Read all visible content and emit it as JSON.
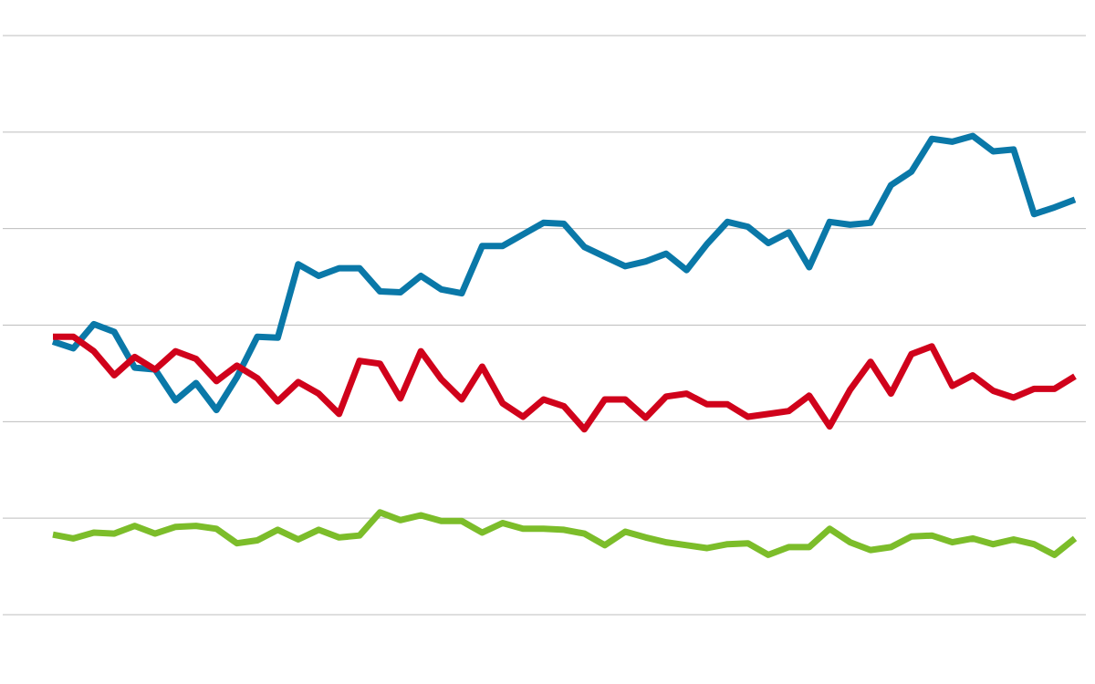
{
  "chart_data": {
    "type": "line",
    "title": "",
    "xlabel": "",
    "ylabel": "",
    "grid": true,
    "legend": "none",
    "xlim": [
      0,
      100
    ],
    "ylim": [
      0,
      6
    ],
    "gridlines": [
      0,
      1,
      2,
      3,
      4,
      5,
      6
    ],
    "x": [
      0,
      2,
      4,
      6,
      8,
      10,
      12,
      14,
      16,
      18,
      20,
      22,
      24,
      26,
      28,
      30,
      32,
      34,
      36,
      38,
      40,
      42,
      44,
      46,
      48,
      50,
      52,
      54,
      56,
      58,
      60,
      62,
      64,
      66,
      68,
      70,
      72,
      74,
      76,
      78,
      80,
      82,
      84,
      86,
      88,
      90,
      92,
      94,
      96,
      98,
      100
    ],
    "series": [
      {
        "color": "#0a78a8",
        "values": [
          2.83,
          2.76,
          3.01,
          2.93,
          2.56,
          2.54,
          2.22,
          2.4,
          2.12,
          2.46,
          2.88,
          2.87,
          3.63,
          3.51,
          3.59,
          3.59,
          3.35,
          3.34,
          3.51,
          3.37,
          3.33,
          3.82,
          3.82,
          3.94,
          4.06,
          4.05,
          3.81,
          3.71,
          3.61,
          3.66,
          3.74,
          3.57,
          3.84,
          4.07,
          4.02,
          3.85,
          3.96,
          3.6,
          4.07,
          4.04,
          4.06,
          4.45,
          4.59,
          4.93,
          4.9,
          4.96,
          4.8,
          4.82,
          4.15,
          4.22,
          4.3
        ]
      },
      {
        "color": "#d0021b",
        "values": [
          2.88,
          2.88,
          2.73,
          2.48,
          2.67,
          2.54,
          2.73,
          2.65,
          2.42,
          2.58,
          2.45,
          2.21,
          2.41,
          2.29,
          2.08,
          2.63,
          2.6,
          2.24,
          2.73,
          2.44,
          2.23,
          2.57,
          2.19,
          2.05,
          2.23,
          2.16,
          1.92,
          2.23,
          2.23,
          2.04,
          2.26,
          2.29,
          2.18,
          2.18,
          2.05,
          2.08,
          2.11,
          2.27,
          1.95,
          2.33,
          2.62,
          2.29,
          2.7,
          2.78,
          2.37,
          2.48,
          2.32,
          2.25,
          2.34,
          2.34,
          2.47
        ]
      },
      {
        "color": "#7cbd2a",
        "values": [
          0.83,
          0.79,
          0.85,
          0.84,
          0.92,
          0.84,
          0.91,
          0.92,
          0.89,
          0.74,
          0.77,
          0.88,
          0.78,
          0.88,
          0.8,
          0.82,
          1.06,
          0.98,
          1.03,
          0.97,
          0.97,
          0.85,
          0.95,
          0.89,
          0.89,
          0.88,
          0.84,
          0.72,
          0.86,
          0.8,
          0.75,
          0.72,
          0.69,
          0.73,
          0.74,
          0.62,
          0.7,
          0.7,
          0.89,
          0.75,
          0.67,
          0.7,
          0.81,
          0.82,
          0.75,
          0.79,
          0.73,
          0.78,
          0.73,
          0.62,
          0.79
        ]
      }
    ]
  }
}
